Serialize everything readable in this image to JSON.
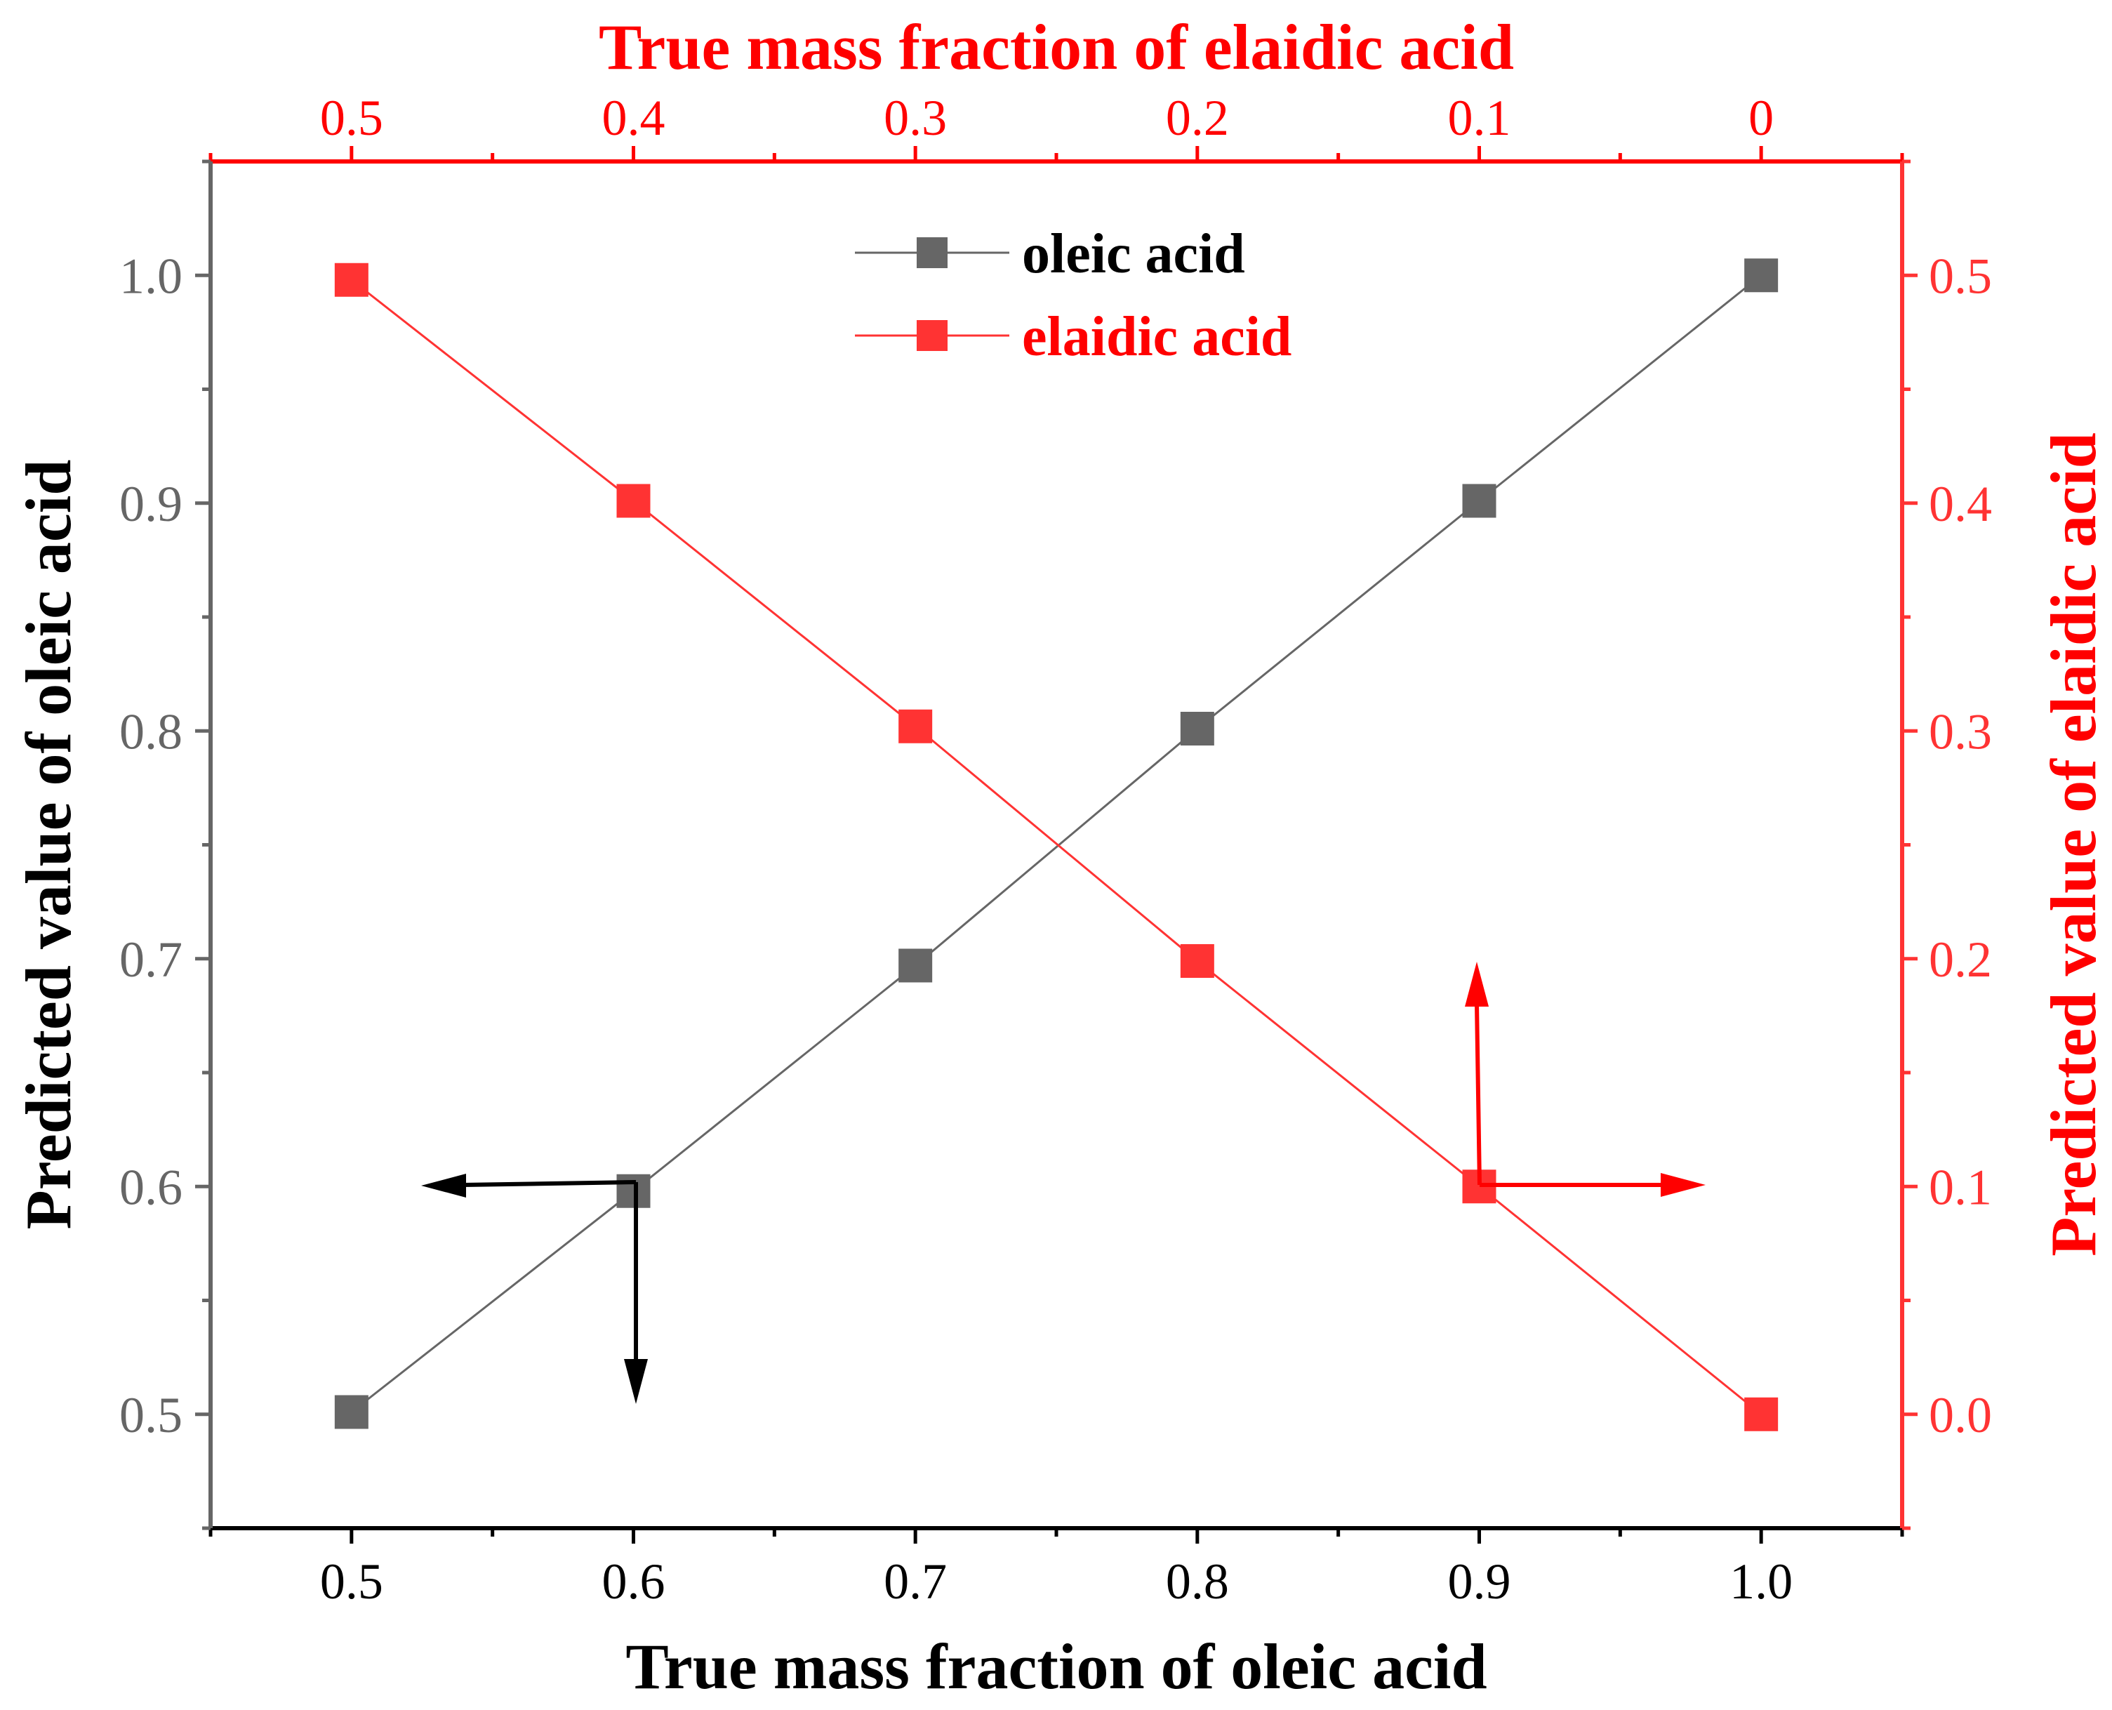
{
  "chart_data": {
    "type": "line",
    "xlabel": "True mass fraction of oleic acid",
    "x2label": "True mass fraction of elaidic acid",
    "ylabel": "Predicted value of oleic acid",
    "y2label": "Predicted value of elaidic acid",
    "xlim": [
      0.45,
      1.05
    ],
    "ylim": [
      0.45,
      1.05
    ],
    "y2lim": [
      -0.05,
      0.55
    ],
    "x_ticks": [
      "0.5",
      "0.6",
      "0.7",
      "0.8",
      "0.9",
      "1.0"
    ],
    "x2_ticks": [
      "0.5",
      "0.4",
      "0.3",
      "0.2",
      "0.1",
      "0"
    ],
    "y_ticks": [
      "0.5",
      "0.6",
      "0.7",
      "0.8",
      "0.9",
      "1.0"
    ],
    "y2_ticks": [
      "0.0",
      "0.1",
      "0.2",
      "0.3",
      "0.4",
      "0.5"
    ],
    "x": [
      0.5,
      0.6,
      0.7,
      0.8,
      0.9,
      1.0
    ],
    "series": [
      {
        "name": "oleic acid",
        "axis": "left",
        "color": "#666666",
        "values": [
          0.501,
          0.598,
          0.697,
          0.801,
          0.901,
          1.0
        ]
      },
      {
        "name": "elaidic acid",
        "axis": "right",
        "color": "#ff3333",
        "values": [
          0.498,
          0.401,
          0.302,
          0.199,
          0.1,
          0.0
        ]
      }
    ],
    "legend_position": "top-center",
    "grid": false,
    "annotations": [
      {
        "name": "oleic-axis-arrows",
        "color": "#000000",
        "anchor_x": 0.6,
        "anchor_y": 0.6,
        "points_to": [
          "left",
          "bottom"
        ]
      },
      {
        "name": "elaidic-axis-arrows",
        "color": "#ff0000",
        "anchor_x": 0.9,
        "anchor_y2": 0.1,
        "points_to": [
          "top",
          "right"
        ]
      }
    ],
    "colors": {
      "left_axis": "#666666",
      "right_axis": "#ff3333",
      "top_axis": "#ff0000",
      "bottom_axis": "#000000"
    }
  }
}
